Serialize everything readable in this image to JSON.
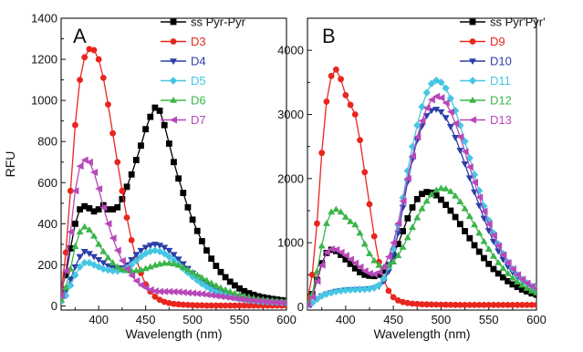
{
  "chart_data": [
    {
      "type": "line",
      "panel": "A",
      "xlabel": "Wavelength (nm)",
      "ylabel": "RFU",
      "xlim": [
        360,
        600
      ],
      "ylim": [
        -20,
        1400
      ],
      "xticks": [
        400,
        450,
        500,
        550,
        600
      ],
      "yticks": [
        0,
        200,
        400,
        600,
        800,
        1000,
        1200,
        1400
      ],
      "legend_position": "top-right",
      "x": [
        360,
        365,
        370,
        375,
        380,
        385,
        390,
        395,
        400,
        405,
        410,
        415,
        420,
        425,
        430,
        435,
        440,
        445,
        450,
        455,
        460,
        465,
        470,
        475,
        480,
        485,
        490,
        495,
        500,
        505,
        510,
        515,
        520,
        525,
        530,
        535,
        540,
        545,
        550,
        555,
        560,
        565,
        570,
        575,
        580,
        585,
        590,
        595,
        600
      ],
      "series": [
        {
          "name": "ss Pyr-Pyr",
          "color": "#000000",
          "marker": "square",
          "values": [
            80,
            150,
            280,
            400,
            470,
            485,
            475,
            460,
            470,
            490,
            470,
            470,
            480,
            520,
            580,
            640,
            710,
            780,
            860,
            920,
            965,
            950,
            880,
            790,
            700,
            620,
            550,
            480,
            420,
            365,
            315,
            270,
            230,
            195,
            165,
            140,
            118,
            100,
            85,
            72,
            62,
            54,
            47,
            42,
            38,
            34,
            31,
            28,
            25
          ]
        },
        {
          "name": "D3",
          "color": "#e8261e",
          "marker": "circle",
          "values": [
            60,
            260,
            560,
            880,
            1100,
            1210,
            1250,
            1245,
            1200,
            1110,
            980,
            840,
            700,
            560,
            430,
            320,
            230,
            160,
            105,
            70,
            45,
            30,
            20,
            14,
            10,
            8,
            6,
            5,
            4,
            3,
            3,
            2,
            2,
            2,
            2,
            2,
            2,
            2,
            2,
            2,
            2,
            2,
            2,
            2,
            2,
            2,
            2,
            2,
            2
          ]
        },
        {
          "name": "D4",
          "color": "#2b3fa8",
          "marker": "triangle-down",
          "values": [
            30,
            70,
            130,
            190,
            240,
            265,
            255,
            240,
            225,
            210,
            195,
            185,
            180,
            185,
            200,
            225,
            250,
            270,
            285,
            295,
            300,
            295,
            285,
            270,
            250,
            228,
            205,
            182,
            160,
            140,
            120,
            103,
            88,
            75,
            64,
            55,
            48,
            42,
            37,
            33,
            30,
            27,
            25,
            23,
            21,
            20,
            19,
            18,
            17
          ]
        },
        {
          "name": "D5",
          "color": "#45c6e3",
          "marker": "diamond",
          "values": [
            20,
            50,
            100,
            150,
            190,
            210,
            210,
            200,
            190,
            180,
            175,
            170,
            170,
            175,
            185,
            200,
            220,
            240,
            255,
            265,
            270,
            265,
            255,
            240,
            222,
            202,
            182,
            162,
            143,
            125,
            108,
            93,
            80,
            69,
            60,
            52,
            45,
            40,
            35,
            31,
            28,
            25,
            23,
            21,
            20,
            19,
            18,
            17,
            16
          ]
        },
        {
          "name": "D6",
          "color": "#3bb54a",
          "marker": "triangle-up",
          "values": [
            30,
            90,
            180,
            290,
            360,
            385,
            370,
            340,
            300,
            265,
            235,
            210,
            190,
            178,
            172,
            170,
            172,
            176,
            182,
            190,
            198,
            204,
            208,
            208,
            205,
            198,
            188,
            176,
            163,
            150,
            137,
            124,
            111,
            99,
            88,
            78,
            69,
            61,
            54,
            48,
            43,
            38,
            34,
            31,
            28,
            26,
            24,
            22,
            20
          ]
        },
        {
          "name": "D7",
          "color": "#b748b8",
          "marker": "triangle-left",
          "values": [
            50,
            170,
            360,
            560,
            680,
            710,
            700,
            650,
            570,
            480,
            400,
            330,
            270,
            220,
            180,
            148,
            122,
            102,
            88,
            78,
            72,
            70,
            70,
            70,
            69,
            68,
            66,
            64,
            62,
            60,
            58,
            55,
            52,
            49,
            46,
            43,
            40,
            37,
            34,
            31,
            28,
            26,
            24,
            22,
            20,
            18,
            17,
            16,
            15
          ]
        }
      ]
    },
    {
      "type": "line",
      "panel": "B",
      "xlabel": "Wavelength (nm)",
      "ylabel": "",
      "xlim": [
        360,
        600
      ],
      "ylim": [
        -50,
        4500
      ],
      "xticks": [
        400,
        450,
        500,
        550,
        600
      ],
      "yticks": [
        0,
        1000,
        2000,
        3000,
        4000
      ],
      "legend_position": "top-right",
      "x": [
        360,
        365,
        370,
        375,
        380,
        385,
        390,
        395,
        400,
        405,
        410,
        415,
        420,
        425,
        430,
        435,
        440,
        445,
        450,
        455,
        460,
        465,
        470,
        475,
        480,
        485,
        490,
        495,
        500,
        505,
        510,
        515,
        520,
        525,
        530,
        535,
        540,
        545,
        550,
        555,
        560,
        565,
        570,
        575,
        580,
        585,
        590,
        595,
        600
      ],
      "series": [
        {
          "name": "ss Pyr'Pyr'",
          "color": "#000000",
          "marker": "square",
          "values": [
            80,
            200,
            420,
            680,
            840,
            890,
            870,
            810,
            740,
            670,
            600,
            540,
            500,
            485,
            480,
            500,
            560,
            650,
            800,
            980,
            1180,
            1380,
            1550,
            1680,
            1760,
            1790,
            1780,
            1740,
            1670,
            1590,
            1500,
            1400,
            1290,
            1180,
            1070,
            960,
            860,
            760,
            670,
            590,
            520,
            460,
            400,
            350,
            310,
            270,
            240,
            210,
            190
          ]
        },
        {
          "name": "D9",
          "color": "#e8261e",
          "marker": "circle",
          "values": [
            100,
            500,
            1300,
            2400,
            3200,
            3600,
            3700,
            3550,
            3300,
            3150,
            3000,
            2600,
            2100,
            1600,
            1100,
            700,
            420,
            250,
            150,
            100,
            75,
            60,
            50,
            45,
            40,
            38,
            36,
            35,
            34,
            33,
            32,
            31,
            30,
            30,
            30,
            30,
            30,
            30,
            30,
            30,
            30,
            30,
            30,
            30,
            30,
            30,
            30,
            30,
            30
          ]
        },
        {
          "name": "D10",
          "color": "#2b3fa8",
          "marker": "triangle-down",
          "values": [
            20,
            60,
            120,
            170,
            200,
            220,
            240,
            250,
            260,
            265,
            270,
            272,
            275,
            280,
            290,
            320,
            400,
            550,
            800,
            1150,
            1550,
            1950,
            2300,
            2600,
            2820,
            2980,
            3060,
            3080,
            3040,
            2950,
            2810,
            2640,
            2440,
            2230,
            2010,
            1790,
            1580,
            1380,
            1190,
            1020,
            870,
            740,
            630,
            540,
            460,
            400,
            350,
            310,
            280
          ]
        },
        {
          "name": "D11",
          "color": "#45c6e3",
          "marker": "diamond",
          "values": [
            20,
            60,
            120,
            170,
            200,
            220,
            240,
            250,
            260,
            265,
            270,
            272,
            275,
            280,
            300,
            340,
            440,
            620,
            900,
            1280,
            1700,
            2120,
            2500,
            2830,
            3120,
            3340,
            3480,
            3530,
            3500,
            3410,
            3250,
            3060,
            2830,
            2580,
            2320,
            2060,
            1810,
            1570,
            1350,
            1150,
            980,
            830,
            700,
            590,
            500,
            430,
            370,
            320,
            280
          ]
        },
        {
          "name": "D12",
          "color": "#3bb54a",
          "marker": "triangle-up",
          "values": [
            50,
            200,
            550,
            950,
            1300,
            1480,
            1520,
            1480,
            1400,
            1330,
            1280,
            1150,
            980,
            830,
            720,
            650,
            620,
            640,
            700,
            800,
            930,
            1080,
            1240,
            1390,
            1530,
            1650,
            1750,
            1820,
            1850,
            1840,
            1800,
            1730,
            1640,
            1530,
            1410,
            1280,
            1150,
            1020,
            900,
            790,
            690,
            600,
            520,
            450,
            390,
            340,
            290,
            250,
            220
          ]
        },
        {
          "name": "D13",
          "color": "#b748b8",
          "marker": "triangle-left",
          "values": [
            30,
            150,
            400,
            650,
            850,
            900,
            890,
            850,
            800,
            740,
            680,
            620,
            560,
            520,
            510,
            540,
            620,
            780,
            1000,
            1300,
            1650,
            2000,
            2350,
            2650,
            2900,
            3100,
            3230,
            3280,
            3260,
            3180,
            3040,
            2860,
            2650,
            2420,
            2180,
            1940,
            1710,
            1490,
            1290,
            1110,
            950,
            810,
            690,
            590,
            500,
            430,
            370,
            320,
            280
          ]
        }
      ]
    }
  ]
}
